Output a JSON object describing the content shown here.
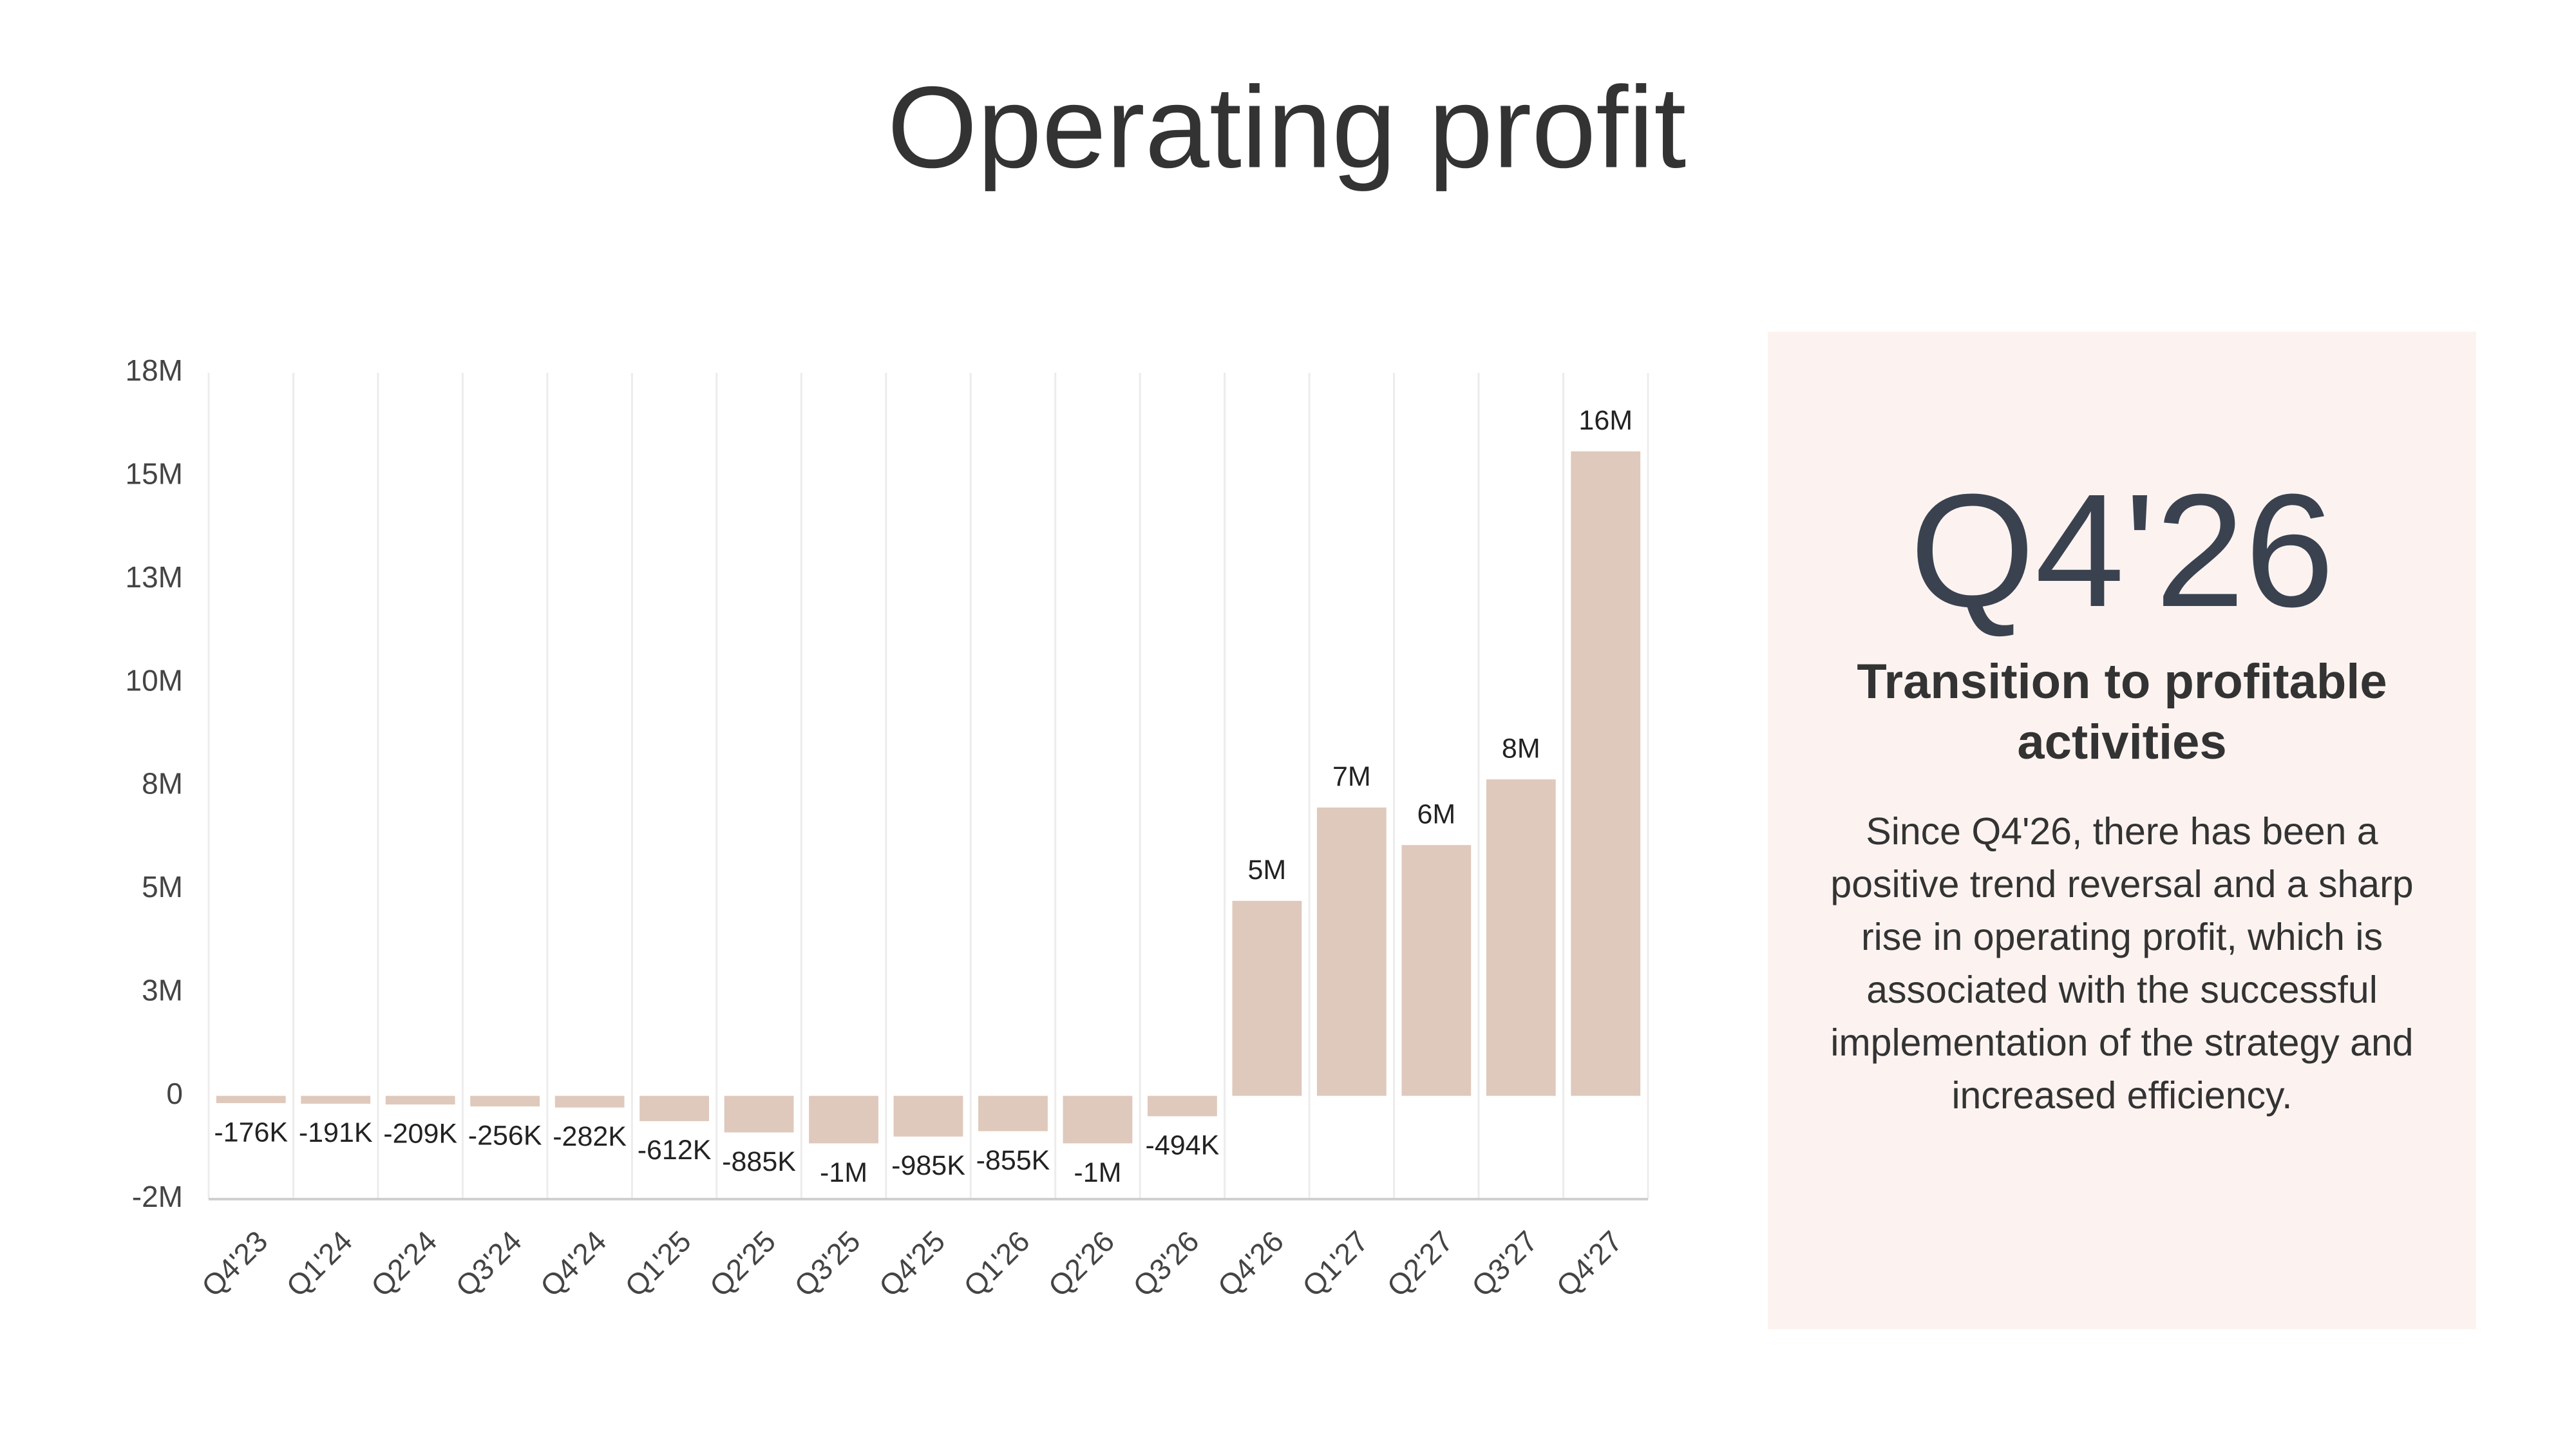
{
  "chart_data": {
    "type": "bar",
    "title": "Operating profit",
    "categories": [
      "Q4'23",
      "Q1'24",
      "Q2'24",
      "Q3'24",
      "Q4'24",
      "Q1'25",
      "Q2'25",
      "Q3'25",
      "Q4'25",
      "Q1'26",
      "Q2'26",
      "Q3'26",
      "Q4'26",
      "Q1'27",
      "Q2'27",
      "Q3'27",
      "Q4'27"
    ],
    "values": [
      -176000,
      -191000,
      -209000,
      -256000,
      -282000,
      -612000,
      -885000,
      -1150000,
      -985000,
      -855000,
      -1150000,
      -494000,
      4720000,
      6980000,
      6070000,
      7660000,
      15600000
    ],
    "value_labels": [
      "-176K",
      "-191K",
      "-209K",
      "-256K",
      "-282K",
      "-612K",
      "-885K",
      "-1M",
      "-985K",
      "-855K",
      "-1M",
      "-494K",
      "5M",
      "7M",
      "6M",
      "8M",
      "16M"
    ],
    "color": "#dfc9bc",
    "ylim": [
      -2500000,
      17500000
    ],
    "yticks": [
      {
        "value": -2500000,
        "label": "-2M"
      },
      0,
      {
        "value": 2500000,
        "label": "3M"
      },
      {
        "value": 5000000,
        "label": "5M"
      },
      {
        "value": 7500000,
        "label": "8M"
      },
      {
        "value": 10000000,
        "label": "10M"
      },
      {
        "value": 12500000,
        "label": "13M"
      },
      {
        "value": 15000000,
        "label": "15M"
      },
      {
        "value": 17500000,
        "label": "18M"
      }
    ],
    "grid": true
  },
  "panel": {
    "headline": "Q4'26",
    "subtitle": "Transition to profitable activities",
    "body": "Since Q4'26, there has been a positive trend reversal and a sharp rise in operating profit, which is associated with the successful implementation of the strategy and increased efficiency."
  }
}
